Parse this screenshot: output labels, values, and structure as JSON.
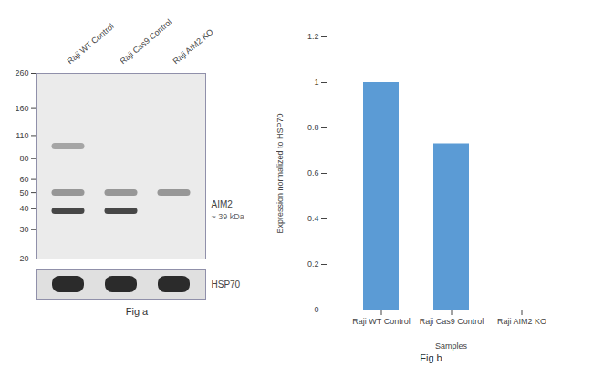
{
  "chart_data": [
    {
      "type": "blot",
      "categories": [
        "Raji WT Control",
        "Raji Cas9 Control",
        "Raji AIM2 KO"
      ],
      "log": "y",
      "ylim": [
        20,
        260
      ],
      "yticks": [
        260,
        160,
        110,
        80,
        60,
        50,
        40,
        30,
        20
      ],
      "bands": [
        {
          "y": 39,
          "lanes": [
            "Raji WT Control",
            "Raji Cas9 Control"
          ],
          "color": "#2a2a2a"
        },
        {
          "y": 50,
          "lanes": [
            "Raji WT Control",
            "Raji Cas9 Control",
            "Raji AIM2 KO"
          ],
          "color": "#888888"
        },
        {
          "y": 95,
          "lanes": [
            "Raji WT Control"
          ],
          "color": "#999999"
        }
      ],
      "annotations": [
        {
          "text": "AIM2",
          "y": 39
        },
        {
          "text": "~ 39 kDa",
          "y": 39
        }
      ],
      "loading_control": {
        "label": "HSP70",
        "lanes": [
          "Raji WT Control",
          "Raji Cas9 Control",
          "Raji AIM2 KO"
        ],
        "color": "#0a0a0a"
      },
      "caption": "Fig a"
    },
    {
      "type": "bar",
      "categories": [
        "Raji WT Control",
        "Raji Cas9 Control",
        "Raji AIM2 KO"
      ],
      "values": [
        1.0,
        0.73,
        0.0
      ],
      "color": "#5b9bd5",
      "xlabel": "Samples",
      "ylabel": "Expression normalized to HSP70",
      "ylim": [
        0,
        1.2
      ],
      "yticks": [
        0,
        0.2,
        0.4,
        0.6,
        0.8,
        1,
        1.2
      ],
      "caption": "Fig b"
    }
  ]
}
